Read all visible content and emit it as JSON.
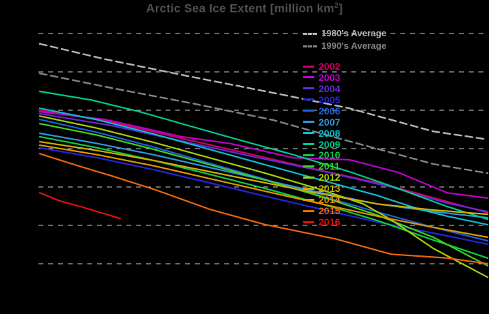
{
  "title": {
    "prefix": "Arctic Sea Ice Extent [million km",
    "sup": "2",
    "suffix": "]",
    "full_text": "Arctic Sea Ice Extent [million km²]"
  },
  "colors": {
    "background": "#000000",
    "title": "#4f4f4f",
    "gridline": "#cfcfcf"
  },
  "chart_data": {
    "type": "line",
    "title": "Arctic Sea Ice Extent [million km²]",
    "xlabel": "",
    "ylabel": "million km²",
    "x_range": [
      0,
      100
    ],
    "ylim": [
      5.4,
      12.7
    ],
    "y_gridlines": [
      12,
      11,
      10,
      9,
      8,
      7,
      6
    ],
    "grid": "horizontal dashed lines, no tick labels visible (plot cropped, black background)",
    "legend_position": "upper-right inside plot",
    "series": [
      {
        "name": "1980's Average",
        "color": "#b5b5b5",
        "dash": true,
        "points": [
          [
            0.3,
            11.73
          ],
          [
            14.8,
            11.33
          ],
          [
            34.2,
            10.87
          ],
          [
            53.7,
            10.42
          ],
          [
            69.2,
            10.05
          ],
          [
            87.9,
            9.45
          ],
          [
            100,
            9.24
          ]
        ]
      },
      {
        "name": "1990's Average",
        "color": "#828282",
        "dash": true,
        "points": [
          [
            0.3,
            10.96
          ],
          [
            16.3,
            10.58
          ],
          [
            34.2,
            10.18
          ],
          [
            52.1,
            9.75
          ],
          [
            67.7,
            9.24
          ],
          [
            87.9,
            8.6
          ],
          [
            100,
            8.36
          ]
        ]
      },
      {
        "name": "2002",
        "color": "#cc0066",
        "dash": false,
        "points": [
          [
            0.3,
            10.0
          ],
          [
            14.8,
            9.73
          ],
          [
            30.3,
            9.31
          ],
          [
            45.9,
            8.89
          ],
          [
            61.4,
            8.47
          ],
          [
            77,
            8.07
          ],
          [
            89.4,
            7.67
          ],
          [
            100,
            7.33
          ]
        ]
      },
      {
        "name": "2003",
        "color": "#bb00cc",
        "dash": false,
        "points": [
          [
            0.3,
            9.96
          ],
          [
            14.8,
            9.76
          ],
          [
            31.9,
            9.31
          ],
          [
            42.8,
            9.13
          ],
          [
            56.8,
            8.76
          ],
          [
            69.2,
            8.71
          ],
          [
            80.1,
            8.38
          ],
          [
            91,
            7.85
          ],
          [
            100,
            7.71
          ]
        ]
      },
      {
        "name": "2004",
        "color": "#5f2bd2",
        "dash": false,
        "points": [
          [
            0.3,
            9.91
          ],
          [
            16.3,
            9.6
          ],
          [
            31.9,
            9.2
          ],
          [
            47.4,
            8.8
          ],
          [
            63,
            8.42
          ],
          [
            78.5,
            8.0
          ],
          [
            91,
            7.58
          ],
          [
            100,
            7.36
          ]
        ]
      },
      {
        "name": "2005",
        "color": "#2526d6",
        "dash": false,
        "points": [
          [
            0.3,
            9.02
          ],
          [
            13.2,
            8.76
          ],
          [
            25.7,
            8.45
          ],
          [
            38.1,
            8.11
          ],
          [
            50.5,
            7.76
          ],
          [
            63,
            7.42
          ],
          [
            75.4,
            7.09
          ],
          [
            87.9,
            6.8
          ],
          [
            100,
            6.51
          ]
        ]
      },
      {
        "name": "2006",
        "color": "#1b62d6",
        "dash": false,
        "points": [
          [
            0.3,
            9.76
          ],
          [
            13.2,
            9.42
          ],
          [
            25.7,
            9.04
          ],
          [
            38.1,
            8.62
          ],
          [
            50.5,
            8.2
          ],
          [
            63,
            7.76
          ],
          [
            75.4,
            7.35
          ],
          [
            87.9,
            6.95
          ],
          [
            100,
            6.6
          ]
        ]
      },
      {
        "name": "2007",
        "color": "#2d96dd",
        "dash": false,
        "points": [
          [
            0.3,
            9.4
          ],
          [
            13.2,
            9.13
          ],
          [
            25.7,
            8.84
          ],
          [
            38.1,
            8.51
          ],
          [
            50.5,
            8.18
          ],
          [
            63,
            7.85
          ],
          [
            75.4,
            7.56
          ],
          [
            87.9,
            7.36
          ],
          [
            100,
            7.2
          ]
        ]
      },
      {
        "name": "2008",
        "color": "#0abccd",
        "dash": false,
        "points": [
          [
            0.3,
            10.05
          ],
          [
            13.2,
            9.75
          ],
          [
            25.7,
            9.38
          ],
          [
            38.1,
            8.98
          ],
          [
            50.5,
            8.58
          ],
          [
            63,
            8.18
          ],
          [
            75.4,
            7.78
          ],
          [
            84.8,
            7.42
          ],
          [
            91,
            7.24
          ],
          [
            100,
            7.02
          ]
        ]
      },
      {
        "name": "2009",
        "color": "#00c98b",
        "dash": false,
        "points": [
          [
            0.3,
            10.49
          ],
          [
            11.7,
            10.27
          ],
          [
            22.6,
            9.96
          ],
          [
            33.4,
            9.6
          ],
          [
            44.3,
            9.24
          ],
          [
            56.8,
            8.84
          ],
          [
            69.2,
            8.4
          ],
          [
            80.1,
            7.96
          ],
          [
            91,
            7.49
          ],
          [
            100,
            7.16
          ]
        ]
      },
      {
        "name": "2010",
        "color": "#0ccc44",
        "dash": false,
        "points": [
          [
            0.3,
            9.31
          ],
          [
            13.2,
            9.02
          ],
          [
            25.7,
            8.69
          ],
          [
            38.1,
            8.33
          ],
          [
            50.5,
            7.96
          ],
          [
            63,
            7.56
          ],
          [
            75.4,
            7.13
          ],
          [
            87.9,
            6.62
          ],
          [
            100,
            6.15
          ]
        ]
      },
      {
        "name": "2011",
        "color": "#3fd01f",
        "dash": false,
        "points": [
          [
            0.3,
            9.65
          ],
          [
            13.2,
            9.35
          ],
          [
            25.7,
            8.98
          ],
          [
            38.1,
            8.58
          ],
          [
            50.5,
            8.18
          ],
          [
            63,
            7.75
          ],
          [
            75.4,
            7.27
          ],
          [
            87.9,
            6.69
          ],
          [
            100,
            5.95
          ]
        ]
      },
      {
        "name": "2012",
        "color": "#a8cf00",
        "dash": false,
        "points": [
          [
            0.3,
            9.85
          ],
          [
            13.2,
            9.53
          ],
          [
            25.7,
            9.16
          ],
          [
            38.1,
            8.76
          ],
          [
            50.5,
            8.36
          ],
          [
            63,
            7.93
          ],
          [
            72.3,
            7.56
          ],
          [
            78.5,
            7.15
          ],
          [
            87.9,
            6.4
          ],
          [
            100,
            5.65
          ]
        ]
      },
      {
        "name": "2013",
        "color": "#cfae00",
        "dash": false,
        "points": [
          [
            0.3,
            9.18
          ],
          [
            13.2,
            8.95
          ],
          [
            25.7,
            8.69
          ],
          [
            38.1,
            8.4
          ],
          [
            50.5,
            8.11
          ],
          [
            63,
            7.82
          ],
          [
            75.4,
            7.56
          ],
          [
            87.9,
            7.4
          ],
          [
            100,
            7.29
          ]
        ]
      },
      {
        "name": "2014",
        "color": "#df9700",
        "dash": false,
        "points": [
          [
            0.3,
            9.09
          ],
          [
            13.2,
            8.84
          ],
          [
            25.7,
            8.55
          ],
          [
            38.1,
            8.22
          ],
          [
            50.5,
            7.89
          ],
          [
            63,
            7.56
          ],
          [
            75.4,
            7.24
          ],
          [
            87.9,
            6.95
          ],
          [
            100,
            6.69
          ]
        ]
      },
      {
        "name": "2015",
        "color": "#e8650e",
        "dash": false,
        "points": [
          [
            0.3,
            8.87
          ],
          [
            8.6,
            8.56
          ],
          [
            16.3,
            8.29
          ],
          [
            26,
            7.93
          ],
          [
            38.1,
            7.42
          ],
          [
            50.5,
            7.02
          ],
          [
            66.1,
            6.65
          ],
          [
            78.5,
            6.25
          ],
          [
            91,
            6.15
          ],
          [
            100,
            6.0
          ]
        ]
      },
      {
        "name": "2016",
        "color": "#dd1111",
        "dash": false,
        "points": [
          [
            0.3,
            7.85
          ],
          [
            4.7,
            7.64
          ],
          [
            9.3,
            7.49
          ],
          [
            14,
            7.33
          ],
          [
            18.2,
            7.18
          ]
        ]
      }
    ]
  }
}
